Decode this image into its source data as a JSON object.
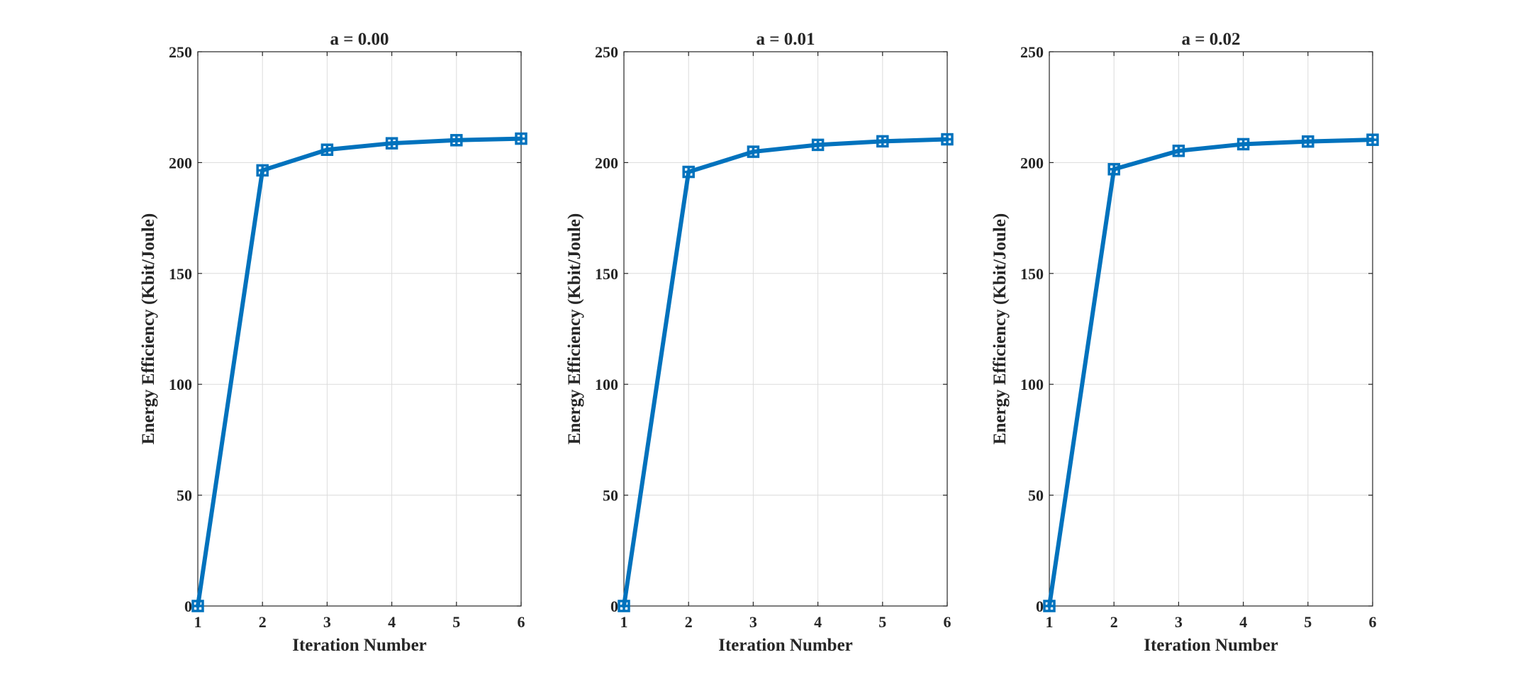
{
  "figure": {
    "series_color": "#0072BD",
    "axis_color": "#262626",
    "grid_color": "#dcdcdc"
  },
  "chart_data": [
    {
      "type": "line",
      "title": "a = 0.00",
      "xlabel": "Iteration Number",
      "ylabel": "Energy Efficiency (Kbit/Joule)",
      "x": [
        1,
        2,
        3,
        4,
        5,
        6
      ],
      "xticks": [
        "1",
        "2",
        "3",
        "4",
        "5",
        "6"
      ],
      "yticks": [
        "0",
        "50",
        "100",
        "150",
        "200",
        "250"
      ],
      "xlim": [
        1,
        6
      ],
      "ylim": [
        0,
        250
      ],
      "grid": true,
      "marker": "square-plus",
      "series": [
        {
          "values": [
            0,
            196.5,
            205.8,
            208.7,
            210.1,
            210.8
          ]
        }
      ]
    },
    {
      "type": "line",
      "title": "a = 0.01",
      "xlabel": "Iteration Number",
      "ylabel": "Energy Efficiency (Kbit/Joule)",
      "x": [
        1,
        2,
        3,
        4,
        5,
        6
      ],
      "xticks": [
        "1",
        "2",
        "3",
        "4",
        "5",
        "6"
      ],
      "yticks": [
        "0",
        "50",
        "100",
        "150",
        "200",
        "250"
      ],
      "xlim": [
        1,
        6
      ],
      "ylim": [
        0,
        250
      ],
      "grid": true,
      "marker": "square-plus",
      "series": [
        {
          "values": [
            0,
            195.8,
            204.9,
            208.0,
            209.6,
            210.5
          ]
        }
      ]
    },
    {
      "type": "line",
      "title": "a = 0.02",
      "xlabel": "Iteration Number",
      "ylabel": "Energy Efficiency (Kbit/Joule)",
      "x": [
        1,
        2,
        3,
        4,
        5,
        6
      ],
      "xticks": [
        "1",
        "2",
        "3",
        "4",
        "5",
        "6"
      ],
      "yticks": [
        "0",
        "50",
        "100",
        "150",
        "200",
        "250"
      ],
      "xlim": [
        1,
        6
      ],
      "ylim": [
        0,
        250
      ],
      "grid": true,
      "marker": "square-plus",
      "series": [
        {
          "values": [
            0,
            197.0,
            205.3,
            208.3,
            209.5,
            210.3
          ]
        }
      ]
    }
  ]
}
